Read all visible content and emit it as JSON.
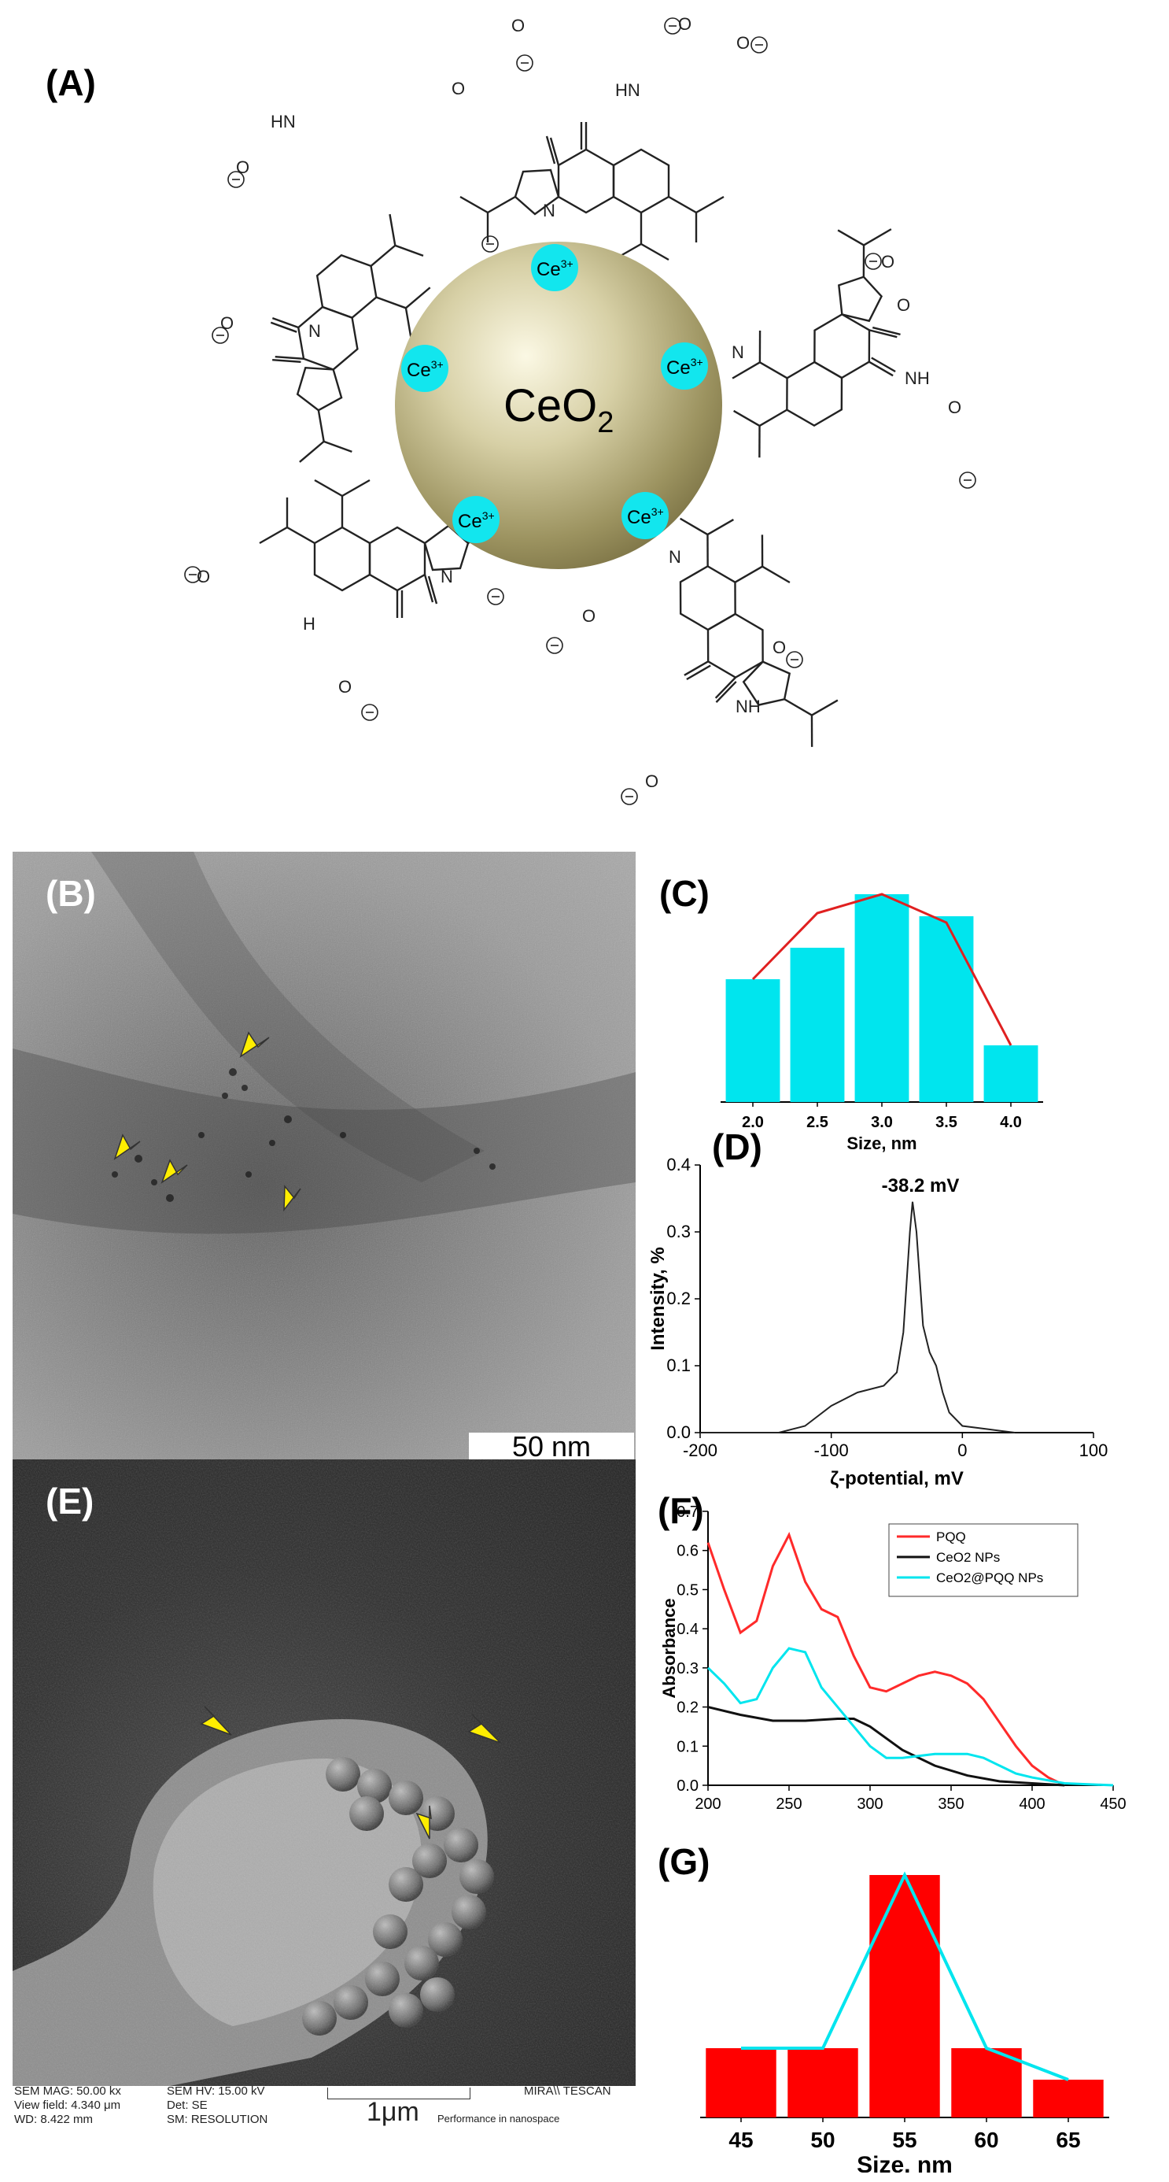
{
  "panels": {
    "A": {
      "label": "(A)",
      "core_label": "CeO",
      "core_sub": "2",
      "ion_label": "Ce",
      "ion_sup": "3+"
    },
    "B": {
      "label": "(B)",
      "scale_bar": "50 nm"
    },
    "C": {
      "label": "(C)"
    },
    "D": {
      "label": "(D)"
    },
    "E": {
      "label": "(E)",
      "scale_bar": "1μm",
      "info": {
        "sem_mag": "SEM MAG: 50.00 kx",
        "view_field": "View field: 4.340 μm",
        "wd": "WD: 8.422 mm",
        "sem_hv": "SEM HV: 15.00 kV",
        "det": "Det: SE",
        "sm": "SM: RESOLUTION",
        "brand": "MIRA\\\\ TESCAN",
        "tagline": "Performance in nanospace"
      }
    },
    "F": {
      "label": "(F)"
    },
    "G": {
      "label": "(G)"
    }
  },
  "colors": {
    "cyan": "#00e5ee",
    "red": "#ff0000",
    "pqq_red": "#ff2a2a",
    "black": "#111111",
    "arrow_yellow": "#ffee00"
  },
  "chart_data": [
    {
      "id": "C",
      "type": "bar",
      "categories": [
        "2.0",
        "2.5",
        "3.0",
        "3.5",
        "4.0"
      ],
      "values": [
        39,
        49,
        66,
        59,
        18
      ],
      "fit_line": [
        39,
        60,
        66,
        57,
        18
      ],
      "xlabel": "Size, nm",
      "ylabel": "",
      "ylim": [
        0,
        70
      ],
      "bar_color": "#00e5ee",
      "line_color": "#e02020"
    },
    {
      "id": "D",
      "type": "line",
      "x": [
        -200,
        -140,
        -120,
        -100,
        -80,
        -60,
        -50,
        -45,
        -40,
        -38,
        -35,
        -30,
        -25,
        -20,
        -15,
        -10,
        0,
        20,
        40
      ],
      "y": [
        0,
        0,
        0.01,
        0.04,
        0.06,
        0.07,
        0.09,
        0.15,
        0.3,
        0.345,
        0.3,
        0.16,
        0.12,
        0.1,
        0.06,
        0.03,
        0.01,
        0.005,
        0
      ],
      "annotation": "-38.2 mV",
      "xlabel": "ζ-potential, mV",
      "ylabel": "Intensity, %",
      "xlim": [
        -200,
        100
      ],
      "ylim": [
        0,
        0.4
      ],
      "xticks": [
        "-200",
        "-100",
        "0",
        "100"
      ],
      "yticks": [
        "0.0",
        "0.1",
        "0.2",
        "0.3",
        "0.4"
      ]
    },
    {
      "id": "F",
      "type": "line",
      "xlabel": "",
      "ylabel": "Absorbance",
      "xlim": [
        200,
        450
      ],
      "ylim": [
        0,
        0.7
      ],
      "xticks": [
        "200",
        "250",
        "300",
        "350",
        "400",
        "450"
      ],
      "yticks": [
        "0.0",
        "0.1",
        "0.2",
        "0.3",
        "0.4",
        "0.5",
        "0.6",
        "0.7"
      ],
      "legend_position": "top-right",
      "series": [
        {
          "name": "PQQ",
          "color": "#ff2a2a",
          "x": [
            200,
            210,
            220,
            230,
            240,
            250,
            260,
            270,
            280,
            290,
            300,
            310,
            320,
            330,
            340,
            350,
            360,
            370,
            380,
            390,
            400,
            410,
            420
          ],
          "y": [
            0.62,
            0.5,
            0.39,
            0.42,
            0.56,
            0.64,
            0.52,
            0.45,
            0.43,
            0.33,
            0.25,
            0.24,
            0.26,
            0.28,
            0.29,
            0.28,
            0.26,
            0.22,
            0.16,
            0.1,
            0.05,
            0.02,
            0.0
          ]
        },
        {
          "name": "CeO2 NPs",
          "color": "#111111",
          "x": [
            200,
            220,
            240,
            260,
            280,
            290,
            300,
            320,
            340,
            360,
            380,
            400,
            420
          ],
          "y": [
            0.2,
            0.18,
            0.165,
            0.165,
            0.17,
            0.17,
            0.15,
            0.09,
            0.05,
            0.025,
            0.01,
            0.005,
            0.0
          ]
        },
        {
          "name": "CeO2@PQQ NPs",
          "color": "#00e5ee",
          "x": [
            200,
            210,
            220,
            230,
            240,
            250,
            260,
            270,
            280,
            290,
            300,
            310,
            320,
            340,
            360,
            370,
            380,
            390,
            400,
            420,
            450
          ],
          "y": [
            0.3,
            0.26,
            0.21,
            0.22,
            0.3,
            0.35,
            0.34,
            0.25,
            0.2,
            0.15,
            0.1,
            0.07,
            0.07,
            0.08,
            0.08,
            0.07,
            0.05,
            0.03,
            0.02,
            0.005,
            0.0
          ]
        }
      ]
    },
    {
      "id": "G",
      "type": "bar",
      "categories": [
        "45",
        "50",
        "55",
        "60",
        "65"
      ],
      "values": [
        22,
        22,
        77,
        22,
        12
      ],
      "fit_line": [
        22,
        22,
        77,
        22,
        12
      ],
      "xlabel": "Size, nm",
      "ylabel": "",
      "ylim": [
        0,
        80
      ],
      "bar_color": "#ff0000",
      "line_color": "#00e5ee"
    }
  ]
}
